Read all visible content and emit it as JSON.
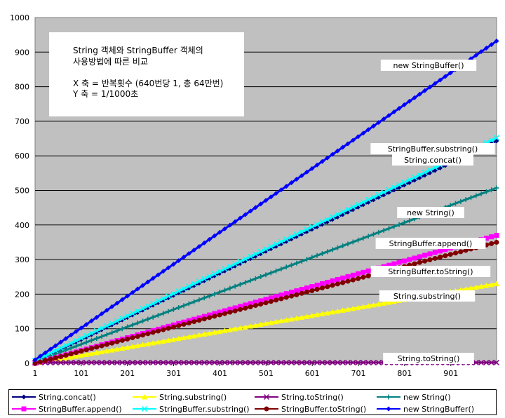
{
  "chart_data": {
    "type": "line",
    "title": "",
    "xlabel": "",
    "ylabel": "",
    "ylim": [
      0,
      1000
    ],
    "yticks": [
      0,
      100,
      200,
      300,
      400,
      500,
      600,
      700,
      800,
      900,
      1000
    ],
    "xtick_labels": [
      "1",
      "101",
      "201",
      "301",
      "401",
      "501",
      "601",
      "701",
      "801",
      "901"
    ],
    "xlim": [
      1,
      1000
    ],
    "plot_background": "#c0c0c0",
    "grid": "horizontal",
    "note_lines": [
      "String 객체와 StringBuffer 객체의",
      "사용방법에 따른 비교",
      "X 축 = 반복횟수 (640번당 1, 총 64만번)",
      "Y 축 = 1/1000초"
    ],
    "series": [
      {
        "name": "String.concat()",
        "color": "#000080",
        "marker": "diamond",
        "label": "String.concat()",
        "values": [
          [
            1,
            5
          ],
          [
            1000,
            643
          ]
        ]
      },
      {
        "name": "String.substring()",
        "color": "#ffff00",
        "marker": "triangle",
        "label": "String.substring()",
        "values": [
          [
            1,
            0
          ],
          [
            1000,
            230
          ]
        ]
      },
      {
        "name": "String.toString()",
        "color": "#800080",
        "marker": "x",
        "label": "String.toString()",
        "values": [
          [
            1,
            2
          ],
          [
            1000,
            2
          ]
        ]
      },
      {
        "name": "new String()",
        "color": "#008080",
        "marker": "plus",
        "label": "new String()",
        "values": [
          [
            1,
            5
          ],
          [
            1000,
            507
          ]
        ]
      },
      {
        "name": "StringBuffer.append()",
        "color": "#ff00ff",
        "marker": "square",
        "label": "StringBuffer.append()",
        "values": [
          [
            1,
            0
          ],
          [
            1000,
            370
          ]
        ]
      },
      {
        "name": "StringBuffer.substring()",
        "color": "#00ffff",
        "marker": "x",
        "label": "StringBuffer.substring()",
        "values": [
          [
            1,
            8
          ],
          [
            1000,
            652
          ]
        ]
      },
      {
        "name": "StringBuffer.toString()",
        "color": "#800000",
        "marker": "circle",
        "label": "StringBuffer.toString()",
        "values": [
          [
            1,
            0
          ],
          [
            1000,
            350
          ]
        ]
      },
      {
        "name": "new StringBuffer()",
        "color": "#0000ff",
        "marker": "diamond",
        "label": "new StringBuffer()",
        "values": [
          [
            1,
            10
          ],
          [
            1000,
            932
          ]
        ]
      }
    ],
    "legend_position": "bottom"
  }
}
